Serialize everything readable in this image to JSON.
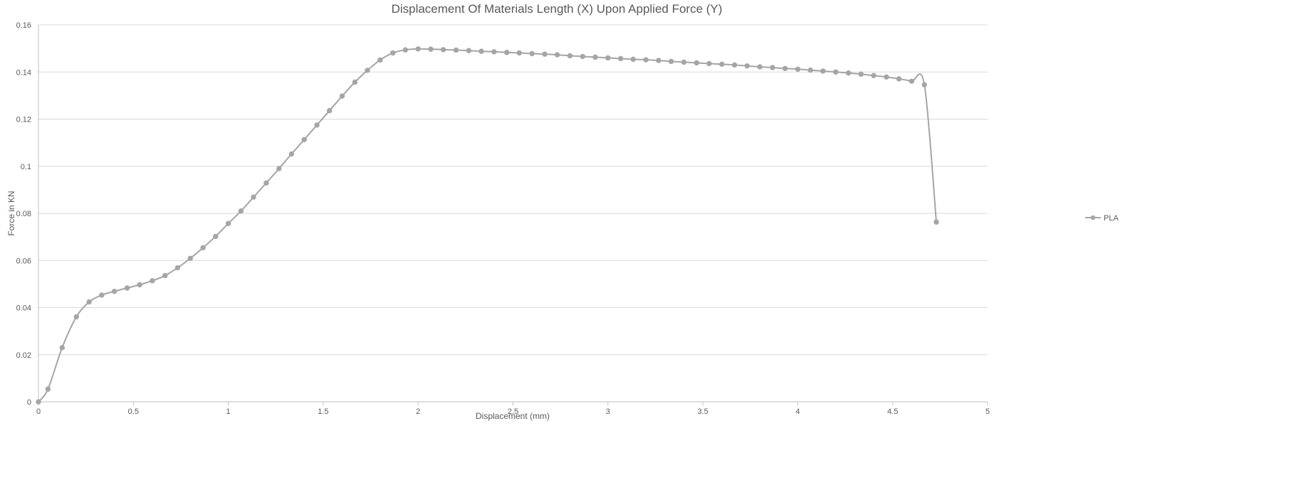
{
  "chart_data": {
    "type": "scatter",
    "title": "Displacement Of Materials Length (X) Upon Applied Force (Y)",
    "xlabel": "Displacement (mm)",
    "ylabel": "Force in KN",
    "xlim": [
      0,
      5
    ],
    "ylim": [
      0,
      0.16
    ],
    "x_ticks": [
      0,
      0.5,
      1,
      1.5,
      2,
      2.5,
      3,
      3.5,
      4,
      4.5,
      5
    ],
    "y_ticks": [
      0,
      0.02,
      0.04,
      0.06,
      0.08,
      0.1,
      0.12,
      0.14,
      0.16
    ],
    "x_tick_labels": [
      "0",
      "0.5",
      "1",
      "1.5",
      "2",
      "2.5",
      "3",
      "3.5",
      "4",
      "4.5",
      "5"
    ],
    "y_tick_labels": [
      "0",
      "0.02",
      "0.04",
      "0.06",
      "0.08",
      "0.1",
      "0.12",
      "0.14",
      "0.16"
    ],
    "grid": true,
    "legend_position": "right",
    "line_style": "smooth-with-markers",
    "series": [
      {
        "name": "PLA",
        "color": "#a5a5a5",
        "points": [
          [
            0,
            0
          ],
          [
            0.05,
            0.0054
          ],
          [
            0.125,
            0.023
          ],
          [
            0.2,
            0.0361
          ],
          [
            0.267,
            0.0424
          ],
          [
            0.333,
            0.0453
          ],
          [
            0.4,
            0.0469
          ],
          [
            0.467,
            0.0483
          ],
          [
            0.533,
            0.0497
          ],
          [
            0.6,
            0.0514
          ],
          [
            0.667,
            0.0536
          ],
          [
            0.733,
            0.0569
          ],
          [
            0.8,
            0.0609
          ],
          [
            0.867,
            0.0654
          ],
          [
            0.933,
            0.0702
          ],
          [
            1.0,
            0.0757
          ],
          [
            1.067,
            0.081
          ],
          [
            1.133,
            0.0869
          ],
          [
            1.2,
            0.0929
          ],
          [
            1.267,
            0.099
          ],
          [
            1.333,
            0.1052
          ],
          [
            1.4,
            0.1113
          ],
          [
            1.467,
            0.1175
          ],
          [
            1.533,
            0.1236
          ],
          [
            1.6,
            0.1298
          ],
          [
            1.667,
            0.1357
          ],
          [
            1.733,
            0.1407
          ],
          [
            1.8,
            0.1451
          ],
          [
            1.867,
            0.1481
          ],
          [
            1.933,
            0.1494
          ],
          [
            2.0,
            0.1498
          ],
          [
            2.067,
            0.1497
          ],
          [
            2.133,
            0.1495
          ],
          [
            2.2,
            0.1493
          ],
          [
            2.267,
            0.1491
          ],
          [
            2.333,
            0.1488
          ],
          [
            2.4,
            0.1486
          ],
          [
            2.467,
            0.1483
          ],
          [
            2.533,
            0.1481
          ],
          [
            2.6,
            0.1478
          ],
          [
            2.667,
            0.1476
          ],
          [
            2.733,
            0.1473
          ],
          [
            2.8,
            0.1469
          ],
          [
            2.867,
            0.1466
          ],
          [
            2.933,
            0.1463
          ],
          [
            3.0,
            0.146
          ],
          [
            3.067,
            0.1457
          ],
          [
            3.133,
            0.1454
          ],
          [
            3.2,
            0.1452
          ],
          [
            3.267,
            0.1449
          ],
          [
            3.333,
            0.1445
          ],
          [
            3.4,
            0.1442
          ],
          [
            3.467,
            0.1439
          ],
          [
            3.533,
            0.1436
          ],
          [
            3.6,
            0.1433
          ],
          [
            3.667,
            0.143
          ],
          [
            3.733,
            0.1426
          ],
          [
            3.8,
            0.1422
          ],
          [
            3.867,
            0.1419
          ],
          [
            3.933,
            0.1415
          ],
          [
            4.0,
            0.1412
          ],
          [
            4.067,
            0.1408
          ],
          [
            4.133,
            0.1404
          ],
          [
            4.2,
            0.14
          ],
          [
            4.267,
            0.1396
          ],
          [
            4.333,
            0.1391
          ],
          [
            4.4,
            0.1385
          ],
          [
            4.467,
            0.1379
          ],
          [
            4.533,
            0.1371
          ],
          [
            4.6,
            0.1361
          ],
          [
            4.667,
            0.1346
          ],
          [
            4.73,
            0.0763
          ]
        ]
      }
    ]
  }
}
